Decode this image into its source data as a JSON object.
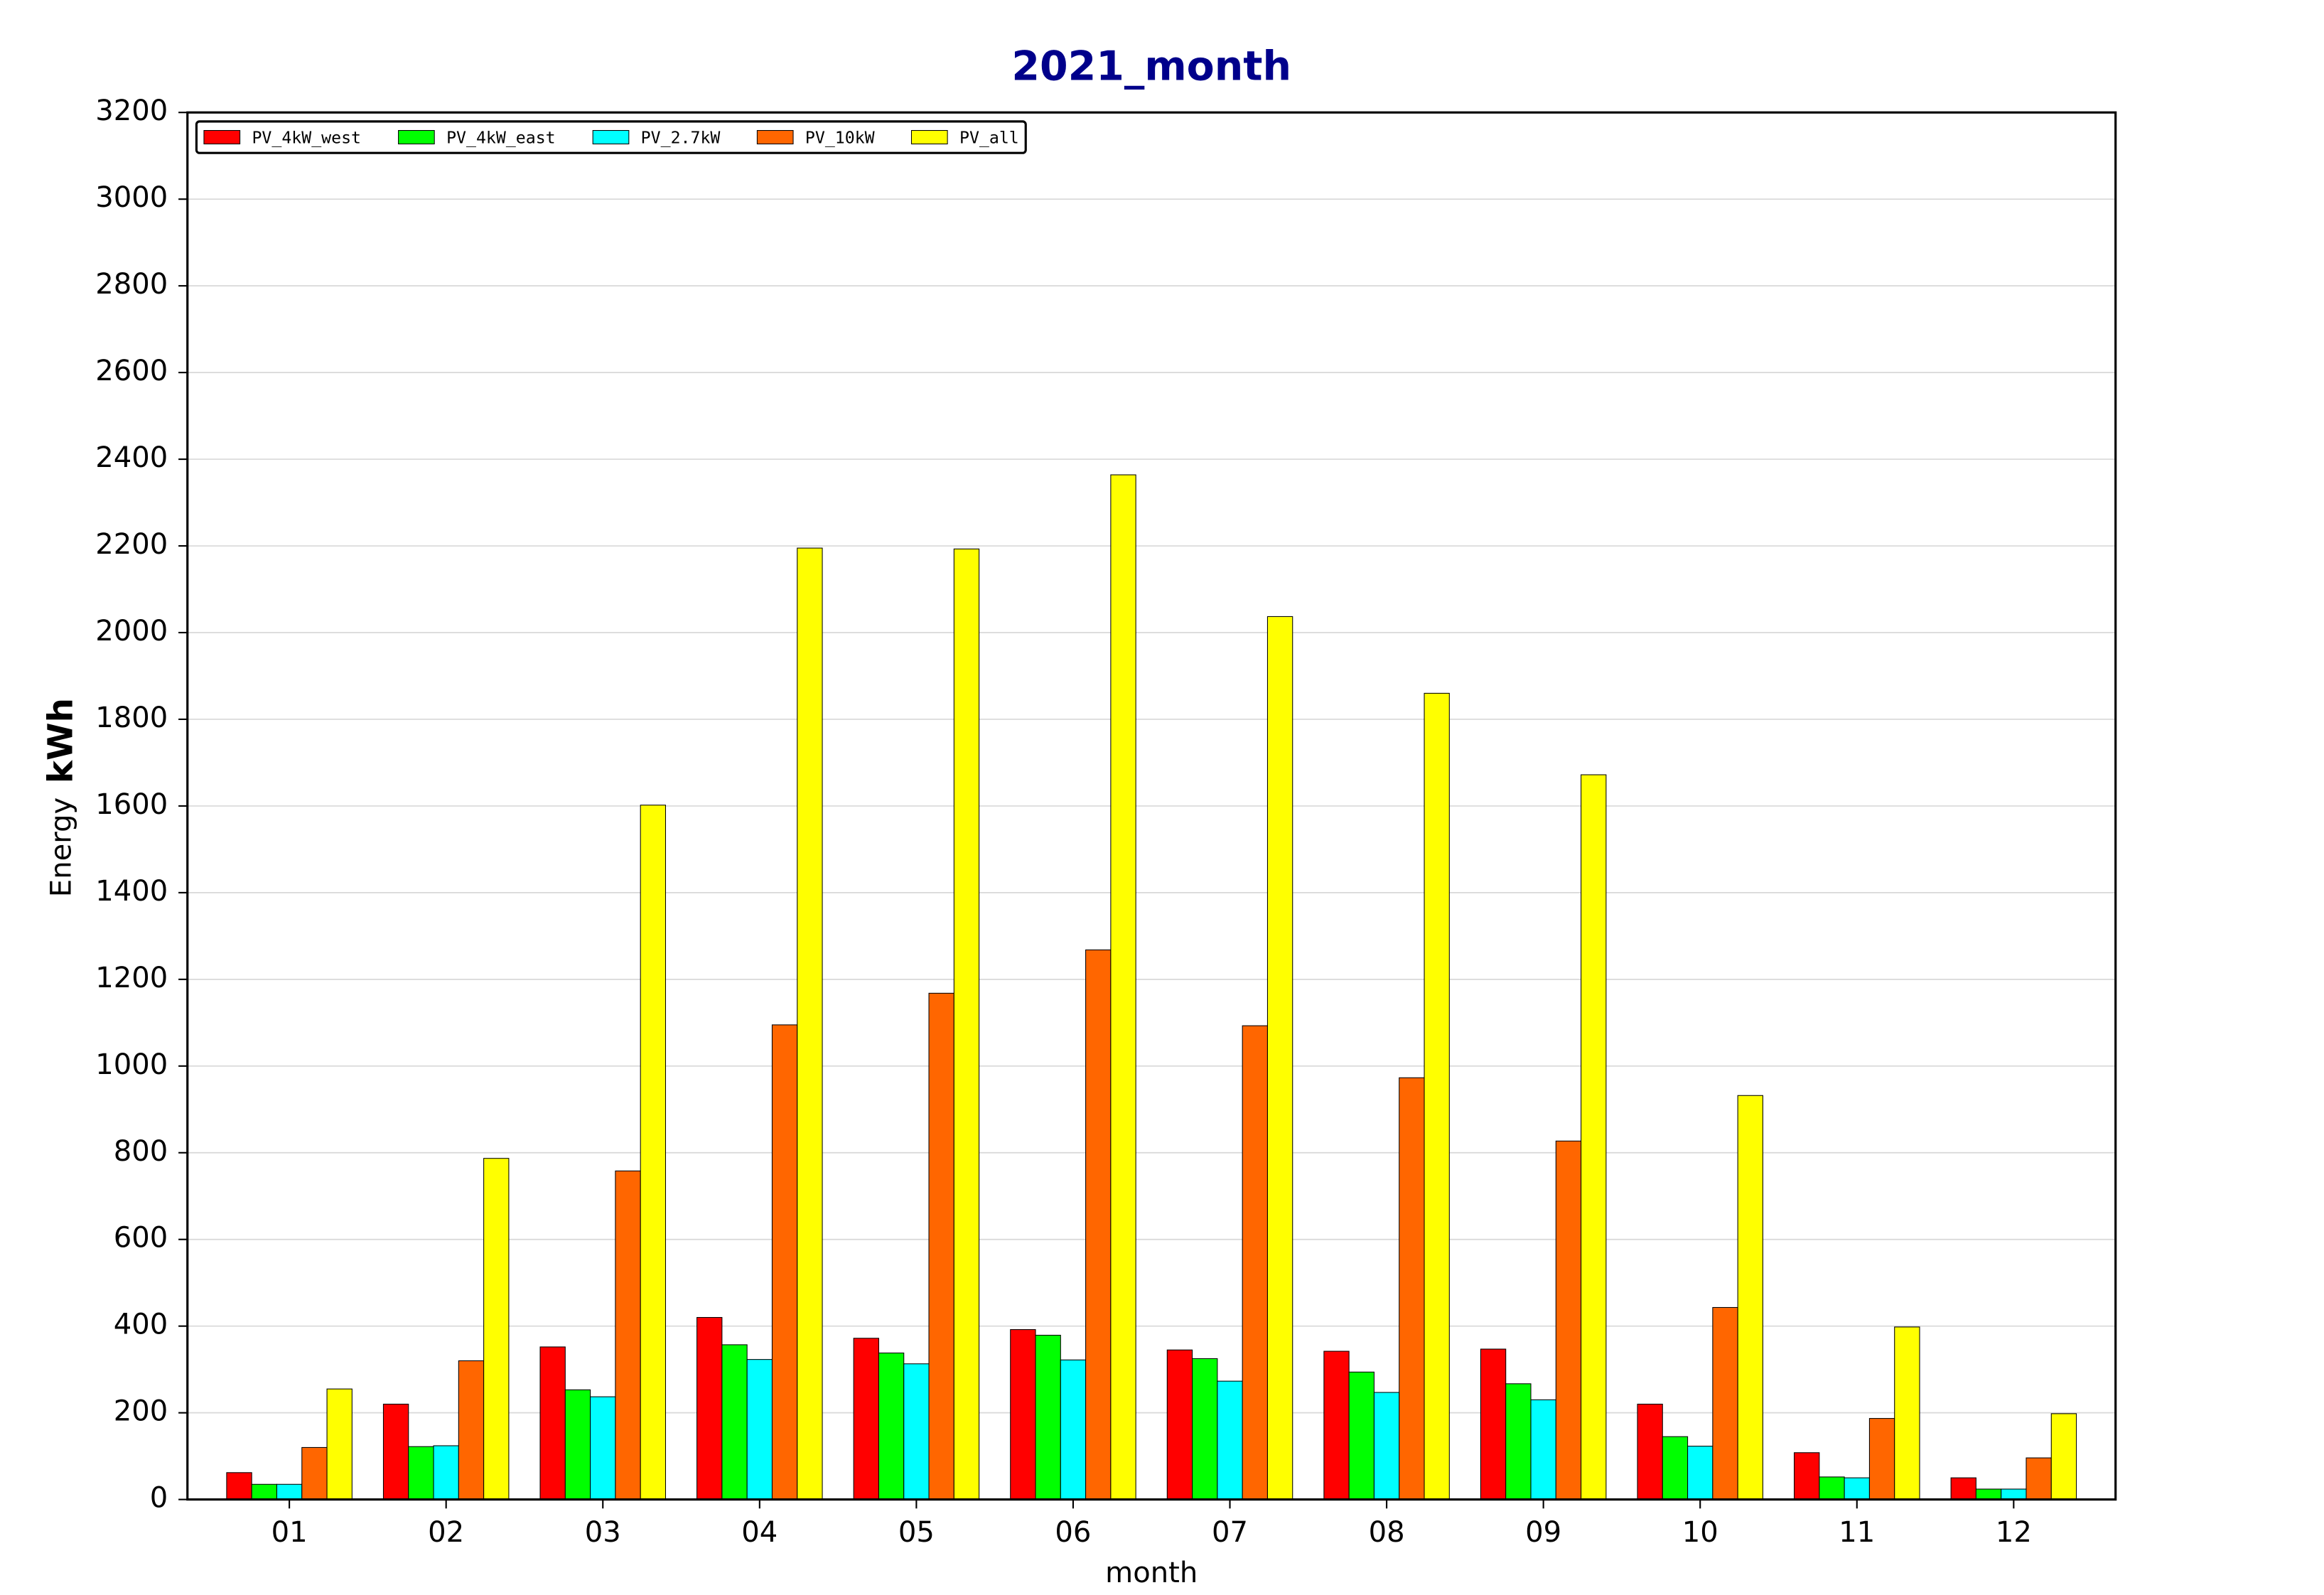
{
  "chart_data": {
    "type": "bar",
    "title": "2021_month",
    "xlabel": "month",
    "ylabel": "Energy",
    "yunit": "kWh",
    "categories": [
      "01",
      "02",
      "03",
      "04",
      "05",
      "06",
      "07",
      "08",
      "09",
      "10",
      "11",
      "12"
    ],
    "series": [
      {
        "name": "PV_4kW_west",
        "color": "#ff0000",
        "values": [
          62,
          220,
          352,
          420,
          372,
          392,
          345,
          342,
          347,
          220,
          108,
          50
        ]
      },
      {
        "name": "PV_4kW_east",
        "color": "#00ff00",
        "values": [
          35,
          122,
          253,
          357,
          338,
          379,
          325,
          294,
          267,
          145,
          52,
          24
        ]
      },
      {
        "name": "PV_2.7kW",
        "color": "#00ffff",
        "values": [
          35,
          124,
          237,
          323,
          313,
          322,
          273,
          247,
          230,
          123,
          50,
          24
        ]
      },
      {
        "name": "PV_10kW",
        "color": "#ff6600",
        "values": [
          120,
          320,
          758,
          1095,
          1168,
          1268,
          1093,
          973,
          827,
          443,
          187,
          96
        ]
      },
      {
        "name": "PV_all",
        "color": "#ffff00",
        "values": [
          255,
          787,
          1602,
          2195,
          2193,
          2364,
          2037,
          1860,
          1672,
          932,
          398,
          198
        ]
      }
    ],
    "ylim": [
      0,
      3200
    ],
    "yticks": [
      0,
      200,
      400,
      600,
      800,
      1000,
      1200,
      1400,
      1600,
      1800,
      2000,
      2200,
      2400,
      2600,
      2800,
      3000,
      3200
    ],
    "grid": true,
    "legend": "upper left"
  }
}
